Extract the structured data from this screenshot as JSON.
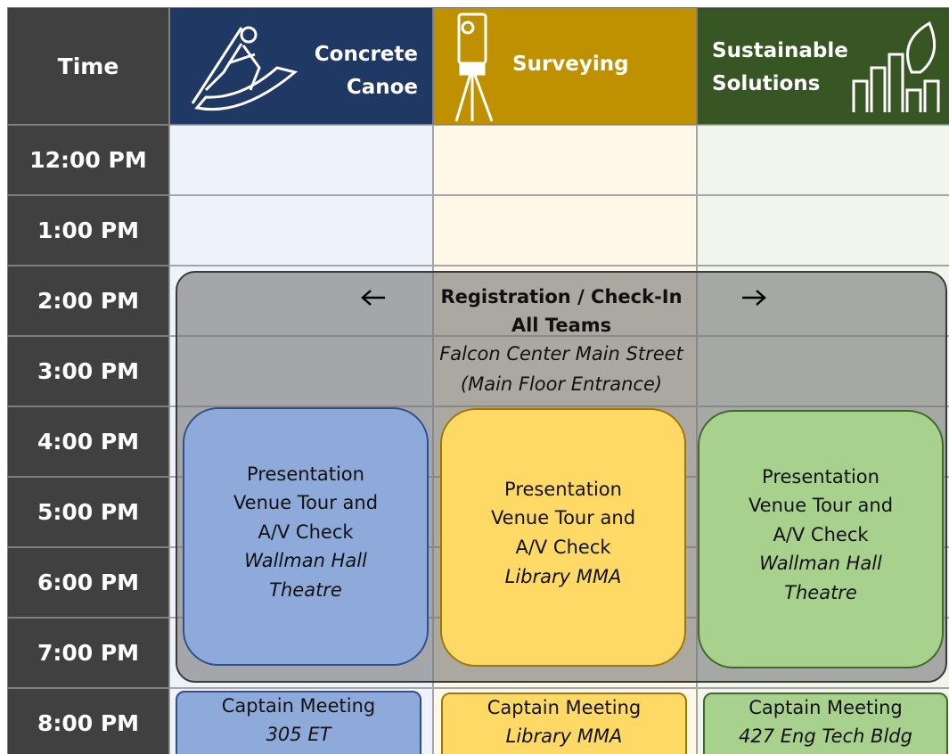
{
  "header": {
    "time_label": "Time"
  },
  "columns": [
    {
      "title": "Concrete Canoe",
      "header_color": "#203864",
      "body_color": "#eef2fa",
      "presentation": {
        "title_lines": [
          "Presentation",
          "Venue Tour and",
          "A/V Check"
        ],
        "location_lines": [
          "Wallman Hall",
          "Theatre"
        ],
        "color": "#8eaadb",
        "border": "#2f4f8f"
      },
      "captain_meeting": {
        "title": "Captain Meeting",
        "location": "305 ET",
        "color": "#8eaadb",
        "border": "#2f4f8f"
      }
    },
    {
      "title": "Surveying",
      "header_color": "#bf9000",
      "body_color": "#fff8e8",
      "presentation": {
        "title_lines": [
          "Presentation",
          "Venue Tour and",
          "A/V Check"
        ],
        "location_lines": [
          "Library MMA"
        ],
        "color": "#ffd966",
        "border": "#a07800"
      },
      "captain_meeting": {
        "title": "Captain Meeting",
        "location": "Library MMA",
        "color": "#ffd966",
        "border": "#a07800"
      }
    },
    {
      "title": "Sustainable Solutions",
      "header_color": "#375623",
      "body_color": "#f0f6ec",
      "presentation": {
        "title_lines": [
          "Presentation",
          "Venue Tour and",
          "A/V Check"
        ],
        "location_lines": [
          "Wallman Hall",
          "Theatre"
        ],
        "color": "#a9d18e",
        "border": "#3f6a2a"
      },
      "captain_meeting": {
        "title": "Captain Meeting",
        "location": "427 Eng Tech Bldg",
        "color": "#a9d18e",
        "border": "#3f6a2a"
      }
    }
  ],
  "times": [
    "12:00 PM",
    "1:00 PM",
    "2:00 PM",
    "3:00 PM",
    "4:00 PM",
    "5:00 PM",
    "6:00 PM",
    "7:00 PM",
    "8:00 PM"
  ],
  "registration": {
    "title_lines": [
      "Registration / Check-In",
      "All Teams"
    ],
    "location_lines": [
      "Falcon Center Main Street",
      "(Main Floor Entrance)"
    ]
  }
}
